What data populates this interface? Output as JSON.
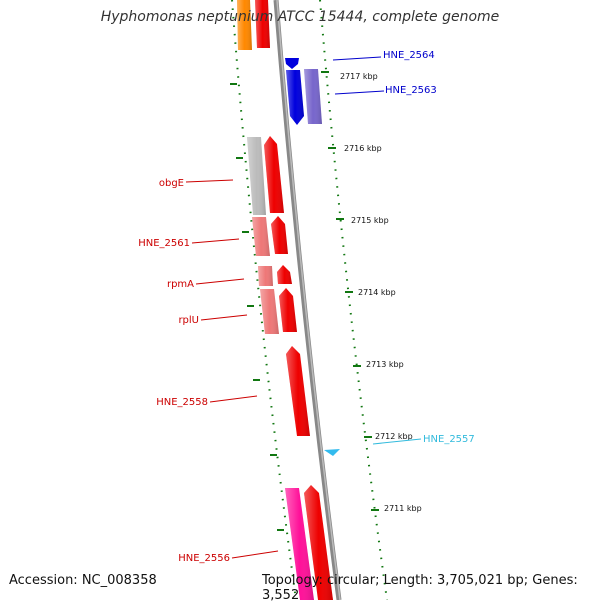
{
  "title": "Hyphomonas neptunium ATCC 15444, complete genome",
  "footer": {
    "accession": "Accession: NC_008358",
    "topology": "Topology: circular; Length: 3,705,021 bp; Genes: 3,552"
  },
  "ticks": [
    {
      "label": "2717 kbp"
    },
    {
      "label": "2716 kbp"
    },
    {
      "label": "2715 kbp"
    },
    {
      "label": "2714 kbp"
    },
    {
      "label": "2713 kbp"
    },
    {
      "label": "2712 kbp"
    },
    {
      "label": "2711 kbp"
    }
  ],
  "genes": [
    {
      "name": "HNE_2564",
      "color": "#0000cc"
    },
    {
      "name": "HNE_2563",
      "color": "#0000cc"
    },
    {
      "name": "obgE",
      "color": "#cc0000"
    },
    {
      "name": "HNE_2561",
      "color": "#cc0000"
    },
    {
      "name": "rpmA",
      "color": "#cc0000"
    },
    {
      "name": "rplU",
      "color": "#cc0000"
    },
    {
      "name": "HNE_2558",
      "color": "#cc0000"
    },
    {
      "name": "HNE_2557",
      "color": "#33bbdd"
    },
    {
      "name": "HNE_2556",
      "color": "#cc0000"
    }
  ],
  "colors": {
    "backbone": "#888888",
    "gc_skew": "#117711",
    "orange_gene": "#ff8800",
    "red_gene": "#ee0000",
    "blue_gene": "#0000dd",
    "purple_gene": "#7766cc",
    "grey_gene": "#bbbbbb",
    "salmon_gene": "#ee7777",
    "magenta_gene": "#ff1199",
    "cyan_gene": "#33bbee"
  }
}
